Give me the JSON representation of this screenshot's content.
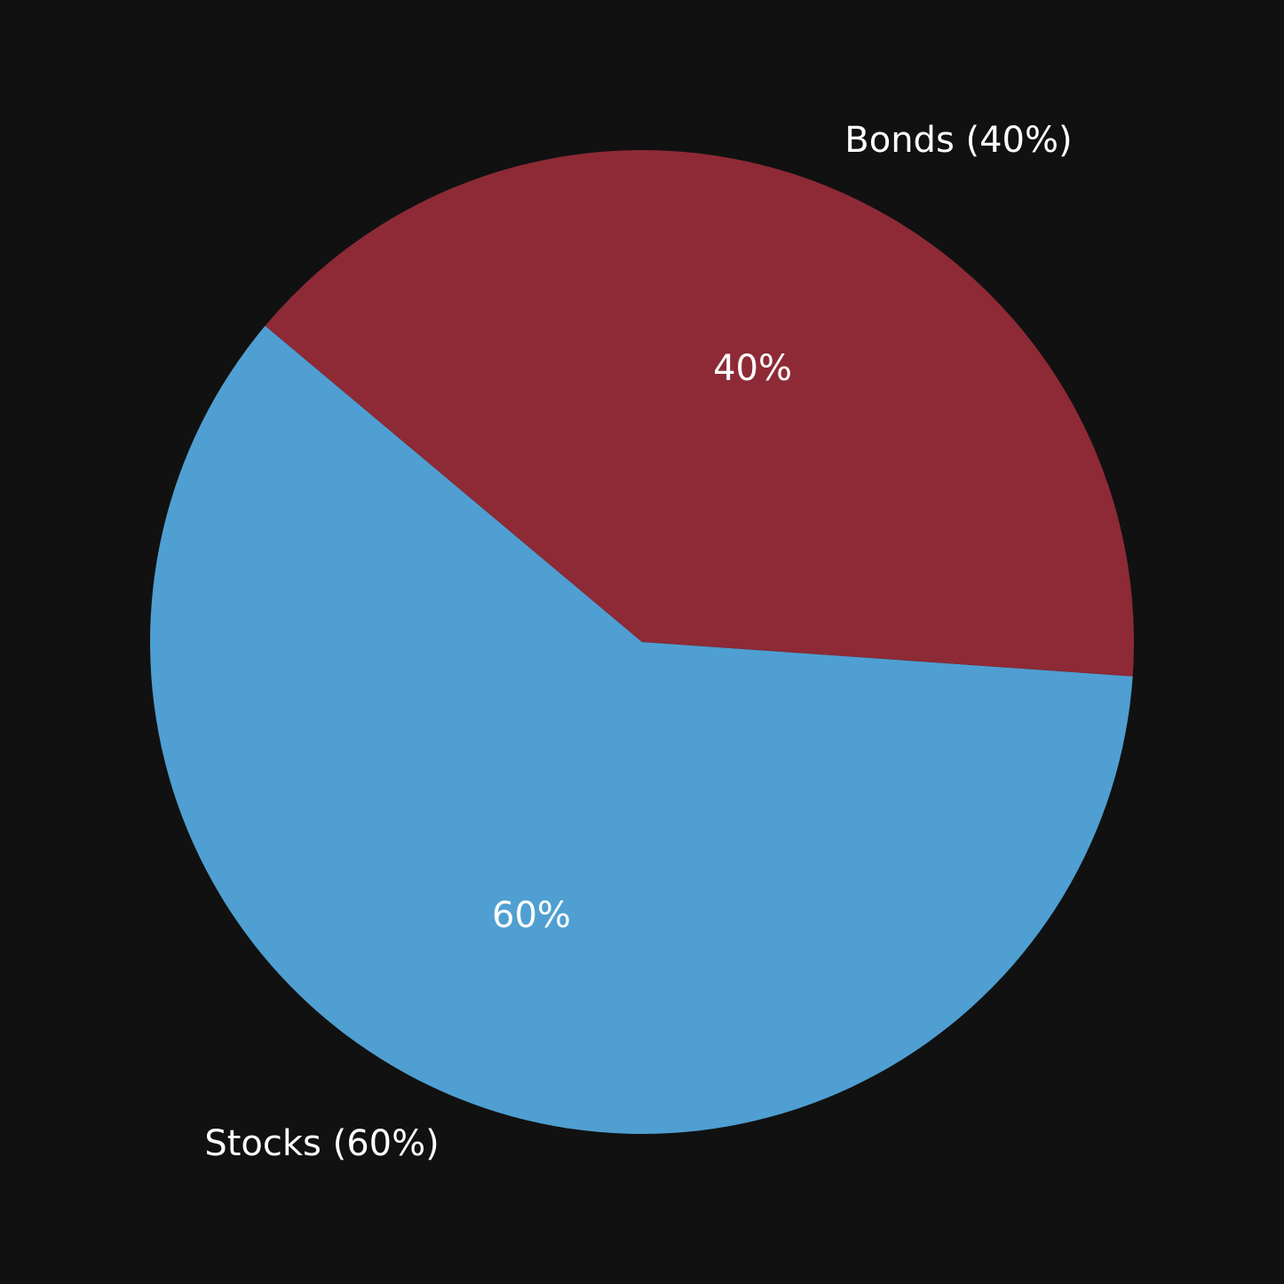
{
  "chart_data": {
    "type": "pie",
    "title": "",
    "background": "#111111",
    "start_angle_deg": 140,
    "direction": "counterclockwise",
    "slices": [
      {
        "name": "Stocks",
        "value": 60,
        "label": "Stocks (60%)",
        "pct_label": "60%",
        "color": "#4f9fd2"
      },
      {
        "name": "Bonds",
        "value": 40,
        "label": "Bonds (40%)",
        "pct_label": "40%",
        "color": "#8d2a36"
      }
    ]
  }
}
